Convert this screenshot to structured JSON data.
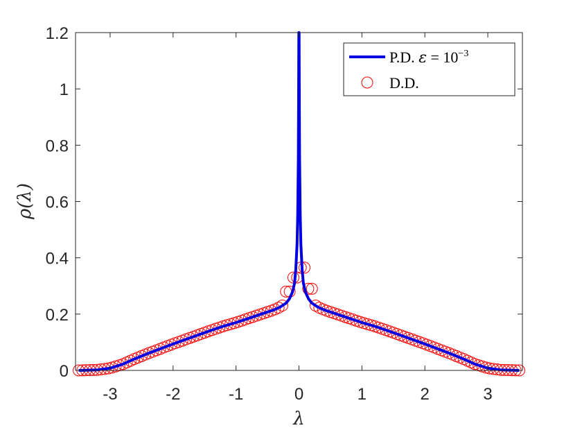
{
  "chart_data": {
    "type": "line",
    "title": "",
    "xlabel": "λ",
    "ylabel": "ρ(λ)",
    "xlim": [
      -3.55,
      3.55
    ],
    "ylim": [
      0,
      1.2
    ],
    "xticks": [
      -3,
      -2,
      -1,
      0,
      1,
      2,
      3
    ],
    "yticks": [
      0,
      0.2,
      0.4,
      0.6,
      0.8,
      1,
      1.2
    ],
    "xtick_labels": [
      "-3",
      "-2",
      "-1",
      "0",
      "1",
      "2",
      "3"
    ],
    "ytick_labels": [
      "0",
      "0.2",
      "0.4",
      "0.6",
      "0.8",
      "1",
      "1.2"
    ],
    "grid": false,
    "legend_position": "top-right",
    "legend": {
      "pd_prefix": "P.D. ",
      "pd_eps": "ε",
      "pd_eq": " = 10",
      "pd_exp": "−3",
      "dd": "D.D."
    },
    "series": [
      {
        "name": "P.D. ε = 10^−3",
        "style": "line",
        "color": "#0000e0",
        "points": [
          [
            -3.5,
            0.0
          ],
          [
            -3.2,
            0.002
          ],
          [
            -3.0,
            0.008
          ],
          [
            -2.8,
            0.022
          ],
          [
            -2.6,
            0.042
          ],
          [
            -2.4,
            0.06
          ],
          [
            -2.2,
            0.077
          ],
          [
            -2.0,
            0.094
          ],
          [
            -1.8,
            0.11
          ],
          [
            -1.6,
            0.126
          ],
          [
            -1.4,
            0.142
          ],
          [
            -1.2,
            0.157
          ],
          [
            -1.0,
            0.17
          ],
          [
            -0.8,
            0.185
          ],
          [
            -0.6,
            0.2
          ],
          [
            -0.4,
            0.215
          ],
          [
            -0.3,
            0.225
          ],
          [
            -0.2,
            0.24
          ],
          [
            -0.15,
            0.255
          ],
          [
            -0.1,
            0.28
          ],
          [
            -0.07,
            0.31
          ],
          [
            -0.05,
            0.36
          ],
          [
            -0.03,
            0.45
          ],
          [
            -0.02,
            0.55
          ],
          [
            -0.01,
            0.75
          ],
          [
            -0.005,
            1.0
          ],
          [
            -0.002,
            1.2
          ],
          [
            0.002,
            1.2
          ],
          [
            0.005,
            1.0
          ],
          [
            0.01,
            0.75
          ],
          [
            0.02,
            0.55
          ],
          [
            0.03,
            0.45
          ],
          [
            0.05,
            0.36
          ],
          [
            0.07,
            0.31
          ],
          [
            0.1,
            0.28
          ],
          [
            0.15,
            0.255
          ],
          [
            0.2,
            0.24
          ],
          [
            0.3,
            0.225
          ],
          [
            0.4,
            0.215
          ],
          [
            0.6,
            0.2
          ],
          [
            0.8,
            0.185
          ],
          [
            1.0,
            0.17
          ],
          [
            1.2,
            0.157
          ],
          [
            1.4,
            0.142
          ],
          [
            1.6,
            0.126
          ],
          [
            1.8,
            0.11
          ],
          [
            2.0,
            0.094
          ],
          [
            2.2,
            0.077
          ],
          [
            2.4,
            0.06
          ],
          [
            2.6,
            0.042
          ],
          [
            2.8,
            0.022
          ],
          [
            3.0,
            0.008
          ],
          [
            3.2,
            0.002
          ],
          [
            3.5,
            0.0
          ]
        ]
      },
      {
        "name": "D.D.",
        "style": "marker-circle",
        "color": "#ff0000",
        "x_start": -3.5,
        "x_end": 3.5,
        "count": 120,
        "peaks": [
          [
            -0.06,
            0.33
          ],
          [
            0.06,
            0.365
          ],
          [
            -0.18,
            0.28
          ],
          [
            0.18,
            0.29
          ]
        ]
      }
    ]
  }
}
